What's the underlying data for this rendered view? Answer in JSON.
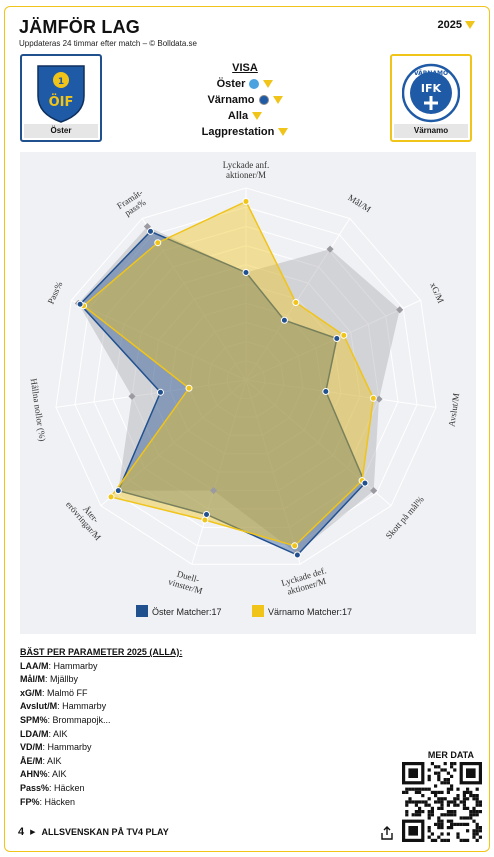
{
  "header": {
    "title": "JÄMFÖR LAG",
    "subtitle": "Uppdateras 24 timmar efter match – © Bolldata.se",
    "year": "2025"
  },
  "teams": {
    "left": {
      "name": "Öster",
      "color": "#21508e"
    },
    "right": {
      "name": "Värnamo",
      "color": "#f0c419"
    }
  },
  "visa": {
    "header": "VISA",
    "team1": "Öster",
    "team2": "Värnamo",
    "filter": "Alla",
    "metric": "Lagprestation"
  },
  "chart_data": {
    "type": "radar",
    "axes": [
      "Lyckade anf. aktioner/M",
      "Mål/M",
      "xG/M",
      "Avslut/M",
      "Skott på mål%",
      "Lyckade def. aktioner/M",
      "Duell-vinster/M",
      "Åter-erövringar/M",
      "Hållna nollor (%)",
      "Pass%",
      "Framåt-pass%"
    ],
    "series": [
      {
        "name": "Öster Matcher:17",
        "color": "#21508e",
        "values": [
          0.56,
          0.37,
          0.52,
          0.42,
          0.82,
          0.95,
          0.73,
          0.88,
          0.45,
          0.95,
          0.92
        ]
      },
      {
        "name": "Värnamo Matcher:17",
        "color": "#f0c419",
        "values": [
          0.93,
          0.48,
          0.56,
          0.67,
          0.8,
          0.9,
          0.76,
          0.93,
          0.3,
          0.93,
          0.85
        ]
      },
      {
        "name": "",
        "color": "#9a9aa0",
        "values": [
          0.56,
          0.81,
          0.88,
          0.7,
          0.88,
          0.94,
          0.6,
          0.88,
          0.6,
          0.96,
          0.95
        ]
      }
    ],
    "rings": 10
  },
  "legend": {
    "left": "Öster Matcher:17",
    "right": "Värnamo Matcher:17"
  },
  "best": {
    "header": "BÄST PER PARAMETER 2025 (ALLA):",
    "items": [
      {
        "k": "LAA/M",
        "v": ": Hammarby"
      },
      {
        "k": "Mål/M",
        "v": ": Mjällby"
      },
      {
        "k": "xG/M",
        "v": ": Malmö FF"
      },
      {
        "k": "Avslut/M",
        "v": ": Hammarby"
      },
      {
        "k": "SPM%",
        "v": ": Brommapojk..."
      },
      {
        "k": "LDA/M",
        "v": ": AIK"
      },
      {
        "k": "VD/M",
        "v": ": Hammarby"
      },
      {
        "k": "ÅE/M",
        "v": ": AIK"
      },
      {
        "k": "AHN%",
        "v": ": AIK"
      },
      {
        "k": "Pass%",
        "v": ": Häcken"
      },
      {
        "k": "FP%",
        "v": ": Häcken"
      }
    ]
  },
  "mer_data": "MER DATA",
  "footer": {
    "text": "ALLSVENSKAN PÅ TV4 PLAY",
    "logo": "4"
  },
  "logos": {
    "left_text": "ÖIF",
    "right_top": "VÄRNAMO",
    "right_mid": "IFK"
  }
}
